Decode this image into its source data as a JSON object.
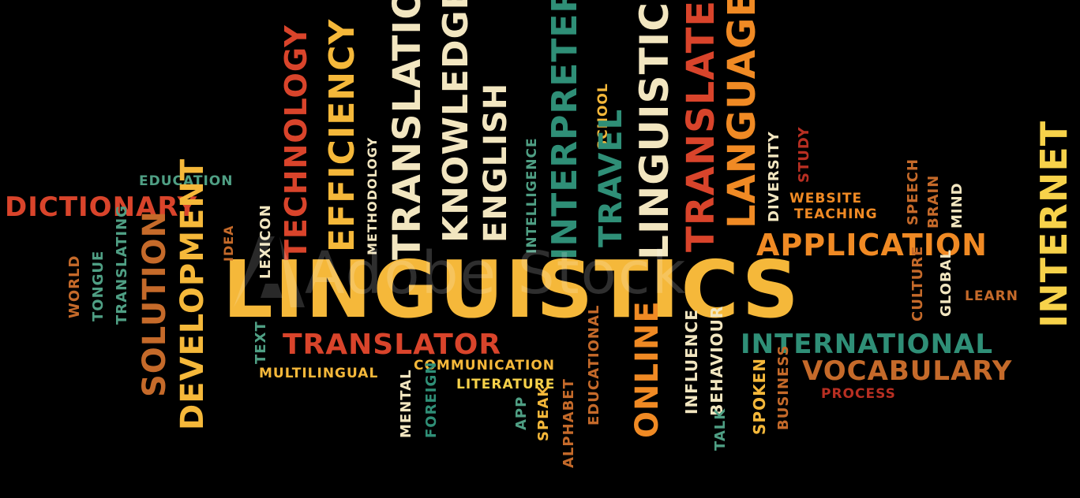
{
  "words": {
    "linguistics": "LINGUISTICS",
    "application": "APPLICATION",
    "international": "INTERNATIONAL",
    "vocabulary": "VOCABULARY",
    "translator": "TRANSLATOR",
    "dictionary": "DICTIONARY",
    "education": "EDUCATION",
    "communication": "COMMUNICATION",
    "multilingual": "MULTILINGUAL",
    "literature": "LITERATURE",
    "website": "WEBSITE",
    "teaching": "TEACHING",
    "learn": "LEARN",
    "process": "PROCESS",
    "technology": "TECHNOLOGY",
    "efficiency": "EFFICIENCY",
    "methodology": "METHODOLOGY",
    "translation": "TRANSLATION",
    "knowledge": "KNOWLEDGE",
    "english": "ENGLISH",
    "intelligence": "INTELLIGENCE",
    "interpreter": "INTERPRETER",
    "school": "SCHOOL",
    "travel": "TRAVEL",
    "linguistic": "LINGUISTIC",
    "translate": "TRANSLATE",
    "language": "LANGUAGE",
    "diversity": "DIVERSITY",
    "study": "STUDY",
    "speech": "SPEECH",
    "brain": "BRAIN",
    "mind": "MIND",
    "internet": "INTERNET",
    "development": "DEVELOPMENT",
    "solution": "SOLUTION",
    "translating": "TRANSLATING",
    "tongue": "TONGUE",
    "world": "WORLD",
    "idea": "IDEA",
    "lexicon": "LEXICON",
    "text": "TEXT",
    "culture": "CULTURE",
    "global": "GLOBAL",
    "online": "ONLINE",
    "influence": "INFLUENCE",
    "behaviour": "BEHAVIOUR",
    "talk": "TALK",
    "spoken": "SPOKEN",
    "business": "BUSINESS",
    "mental": "MENTAL",
    "foreign": "FOREIGN",
    "app": "APP",
    "speak": "SPEAK",
    "alphabet": "ALPHABET",
    "educational": "EDUCATIONAL"
  },
  "watermark": "Adobe Stock",
  "colors": {
    "background": "#000000",
    "orange": "#f08a24",
    "gold": "#f5b83a",
    "yellow": "#f7d24a",
    "cream": "#f2e6c0",
    "red": "#d9442b",
    "teal": "#2f8f77",
    "green": "#4f9f84",
    "brown": "#c56a2a"
  }
}
